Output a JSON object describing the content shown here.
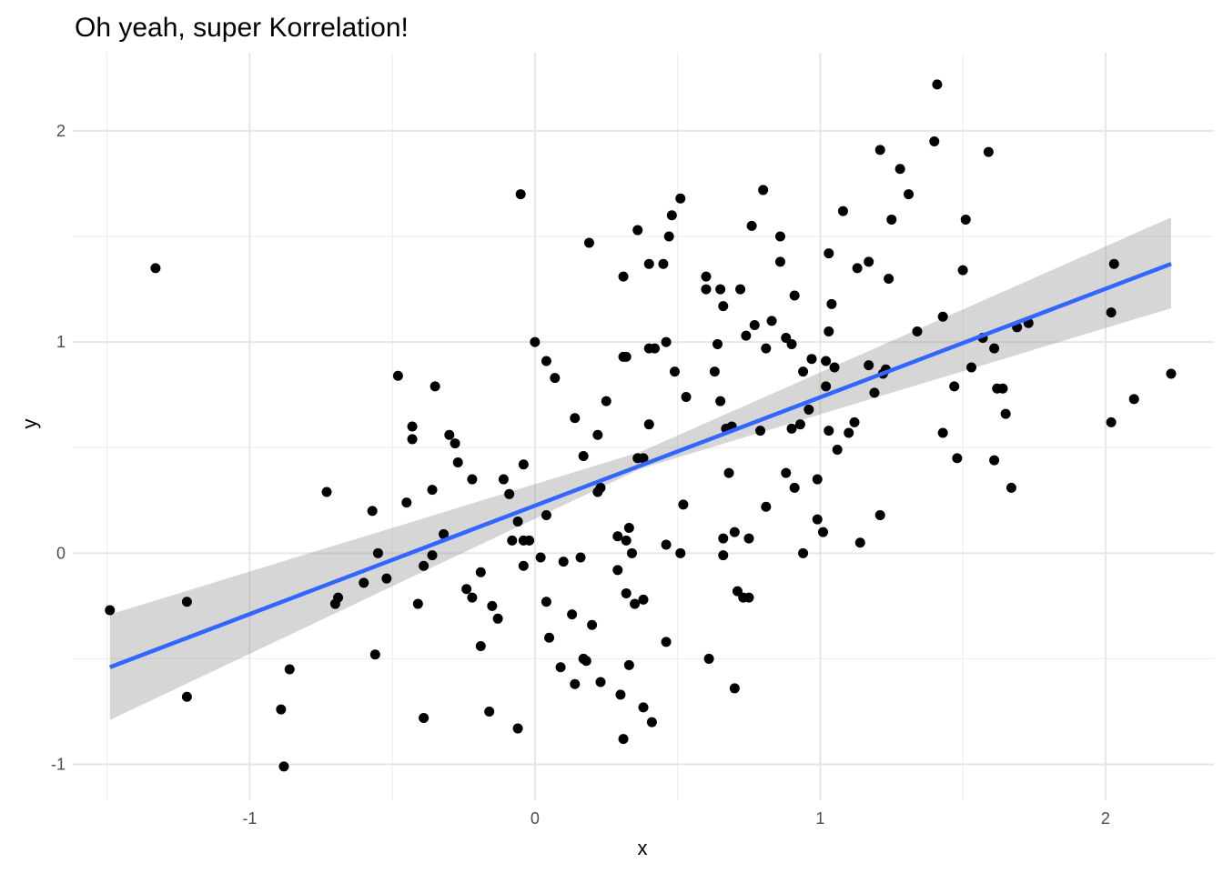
{
  "chart_data": {
    "type": "scatter",
    "title": "Oh yeah, super Korrelation!",
    "xlabel": "x",
    "ylabel": "y",
    "xlim": [
      -1.62,
      2.38
    ],
    "ylim": [
      -1.17,
      2.37
    ],
    "x_ticks": [
      -1,
      0,
      1,
      2
    ],
    "y_ticks": [
      -1,
      0,
      1,
      2
    ],
    "x_tick_labels": [
      "-1",
      "0",
      "1",
      "2"
    ],
    "y_tick_labels": [
      "-1",
      "0",
      "1",
      "2"
    ],
    "grid": true,
    "legend": "none",
    "colors": {
      "points": "#000000",
      "fit_line": "#3366ff",
      "confidence_band": "#999999",
      "grid": "#e6e6e6"
    },
    "fit": {
      "method": "lm",
      "x_range": [
        -1.49,
        2.23
      ],
      "y_start": -0.54,
      "y_end": 1.37,
      "band_lower": [
        [
          -1.49,
          -0.79
        ],
        [
          0.37,
          0.4
        ],
        [
          2.23,
          1.16
        ]
      ],
      "band_upper": [
        [
          -1.49,
          -0.29
        ],
        [
          0.37,
          0.48
        ],
        [
          2.23,
          1.59
        ]
      ]
    },
    "points": [
      [
        -1.49,
        -0.27
      ],
      [
        -1.33,
        1.35
      ],
      [
        -1.22,
        -0.23
      ],
      [
        -1.22,
        -0.68
      ],
      [
        -0.89,
        -0.74
      ],
      [
        -0.88,
        -1.01
      ],
      [
        -0.86,
        -0.55
      ],
      [
        -0.73,
        0.29
      ],
      [
        -0.7,
        -0.24
      ],
      [
        -0.69,
        -0.21
      ],
      [
        -0.6,
        -0.14
      ],
      [
        -0.57,
        0.2
      ],
      [
        -0.56,
        -0.48
      ],
      [
        -0.55,
        0.0
      ],
      [
        -0.52,
        -0.12
      ],
      [
        -0.48,
        0.84
      ],
      [
        -0.45,
        0.24
      ],
      [
        -0.43,
        0.6
      ],
      [
        -0.43,
        0.54
      ],
      [
        -0.41,
        -0.24
      ],
      [
        -0.39,
        -0.78
      ],
      [
        -0.39,
        -0.06
      ],
      [
        -0.36,
        0.3
      ],
      [
        -0.36,
        -0.01
      ],
      [
        -0.35,
        0.79
      ],
      [
        -0.32,
        0.09
      ],
      [
        -0.3,
        0.56
      ],
      [
        -0.28,
        0.52
      ],
      [
        -0.27,
        0.43
      ],
      [
        -0.24,
        -0.17
      ],
      [
        -0.22,
        -0.21
      ],
      [
        -0.22,
        0.35
      ],
      [
        -0.19,
        -0.44
      ],
      [
        -0.19,
        -0.09
      ],
      [
        -0.16,
        -0.75
      ],
      [
        -0.15,
        -0.25
      ],
      [
        -0.13,
        -0.31
      ],
      [
        -0.11,
        0.35
      ],
      [
        -0.09,
        0.28
      ],
      [
        -0.08,
        0.06
      ],
      [
        -0.06,
        -0.83
      ],
      [
        -0.06,
        0.15
      ],
      [
        -0.05,
        1.7
      ],
      [
        -0.04,
        0.06
      ],
      [
        -0.04,
        0.42
      ],
      [
        -0.04,
        -0.06
      ],
      [
        -0.02,
        0.06
      ],
      [
        0.0,
        1.0
      ],
      [
        0.02,
        -0.02
      ],
      [
        0.04,
        0.18
      ],
      [
        0.04,
        0.91
      ],
      [
        0.04,
        -0.23
      ],
      [
        0.05,
        -0.4
      ],
      [
        0.07,
        0.83
      ],
      [
        0.09,
        -0.54
      ],
      [
        0.1,
        -0.04
      ],
      [
        0.13,
        -0.29
      ],
      [
        0.14,
        -0.62
      ],
      [
        0.14,
        0.64
      ],
      [
        0.16,
        -0.02
      ],
      [
        0.17,
        0.46
      ],
      [
        0.17,
        -0.5
      ],
      [
        0.18,
        -0.51
      ],
      [
        0.19,
        1.47
      ],
      [
        0.2,
        -0.34
      ],
      [
        0.22,
        0.56
      ],
      [
        0.22,
        0.29
      ],
      [
        0.23,
        -0.61
      ],
      [
        0.23,
        0.31
      ],
      [
        0.25,
        0.72
      ],
      [
        0.29,
        0.08
      ],
      [
        0.29,
        -0.08
      ],
      [
        0.3,
        -0.67
      ],
      [
        0.31,
        1.31
      ],
      [
        0.31,
        0.93
      ],
      [
        0.31,
        -0.88
      ],
      [
        0.32,
        0.93
      ],
      [
        0.32,
        -0.19
      ],
      [
        0.32,
        0.06
      ],
      [
        0.33,
        -0.53
      ],
      [
        0.33,
        0.12
      ],
      [
        0.34,
        0.0
      ],
      [
        0.35,
        -0.24
      ],
      [
        0.36,
        0.45
      ],
      [
        0.36,
        1.53
      ],
      [
        0.38,
        0.45
      ],
      [
        0.38,
        -0.22
      ],
      [
        0.38,
        -0.73
      ],
      [
        0.4,
        0.61
      ],
      [
        0.4,
        0.97
      ],
      [
        0.4,
        1.37
      ],
      [
        0.41,
        -0.8
      ],
      [
        0.42,
        0.97
      ],
      [
        0.45,
        1.37
      ],
      [
        0.46,
        0.04
      ],
      [
        0.46,
        1.0
      ],
      [
        0.46,
        -0.42
      ],
      [
        0.47,
        1.5
      ],
      [
        0.48,
        1.6
      ],
      [
        0.49,
        0.86
      ],
      [
        0.51,
        1.68
      ],
      [
        0.51,
        0.0
      ],
      [
        0.52,
        0.23
      ],
      [
        0.53,
        0.74
      ],
      [
        0.6,
        1.31
      ],
      [
        0.6,
        1.25
      ],
      [
        0.61,
        -0.5
      ],
      [
        0.63,
        0.86
      ],
      [
        0.64,
        0.99
      ],
      [
        0.65,
        1.25
      ],
      [
        0.65,
        0.72
      ],
      [
        0.66,
        1.17
      ],
      [
        0.66,
        0.07
      ],
      [
        0.66,
        -0.01
      ],
      [
        0.67,
        0.59
      ],
      [
        0.68,
        0.38
      ],
      [
        0.69,
        0.6
      ],
      [
        0.7,
        -0.64
      ],
      [
        0.7,
        0.1
      ],
      [
        0.71,
        -0.18
      ],
      [
        0.72,
        1.25
      ],
      [
        0.73,
        -0.21
      ],
      [
        0.74,
        1.03
      ],
      [
        0.75,
        0.07
      ],
      [
        0.75,
        -0.21
      ],
      [
        0.76,
        1.55
      ],
      [
        0.77,
        1.08
      ],
      [
        0.79,
        0.58
      ],
      [
        0.8,
        1.72
      ],
      [
        0.81,
        0.97
      ],
      [
        0.81,
        0.22
      ],
      [
        0.83,
        1.1
      ],
      [
        0.86,
        1.5
      ],
      [
        0.86,
        1.38
      ],
      [
        0.88,
        1.02
      ],
      [
        0.88,
        0.38
      ],
      [
        0.9,
        0.99
      ],
      [
        0.9,
        0.59
      ],
      [
        0.91,
        0.31
      ],
      [
        0.91,
        1.22
      ],
      [
        0.93,
        0.61
      ],
      [
        0.94,
        0.86
      ],
      [
        0.94,
        0.0
      ],
      [
        0.96,
        0.68
      ],
      [
        0.97,
        0.92
      ],
      [
        0.99,
        0.16
      ],
      [
        0.99,
        0.35
      ],
      [
        1.01,
        0.1
      ],
      [
        1.02,
        0.79
      ],
      [
        1.02,
        0.91
      ],
      [
        1.03,
        1.42
      ],
      [
        1.03,
        1.05
      ],
      [
        1.03,
        0.58
      ],
      [
        1.04,
        1.18
      ],
      [
        1.05,
        0.88
      ],
      [
        1.06,
        0.49
      ],
      [
        1.08,
        1.62
      ],
      [
        1.1,
        0.57
      ],
      [
        1.12,
        0.62
      ],
      [
        1.13,
        1.35
      ],
      [
        1.14,
        0.05
      ],
      [
        1.17,
        1.38
      ],
      [
        1.17,
        0.89
      ],
      [
        1.19,
        0.76
      ],
      [
        1.21,
        1.91
      ],
      [
        1.21,
        0.18
      ],
      [
        1.22,
        0.85
      ],
      [
        1.23,
        0.87
      ],
      [
        1.24,
        1.3
      ],
      [
        1.25,
        1.58
      ],
      [
        1.28,
        1.82
      ],
      [
        1.31,
        1.7
      ],
      [
        1.34,
        1.05
      ],
      [
        1.4,
        1.95
      ],
      [
        1.41,
        2.22
      ],
      [
        1.43,
        1.12
      ],
      [
        1.43,
        0.57
      ],
      [
        1.47,
        0.79
      ],
      [
        1.48,
        0.45
      ],
      [
        1.5,
        1.34
      ],
      [
        1.51,
        1.58
      ],
      [
        1.53,
        0.88
      ],
      [
        1.57,
        1.02
      ],
      [
        1.59,
        1.9
      ],
      [
        1.61,
        0.97
      ],
      [
        1.61,
        0.44
      ],
      [
        1.62,
        0.78
      ],
      [
        1.64,
        0.78
      ],
      [
        1.65,
        0.66
      ],
      [
        1.67,
        0.31
      ],
      [
        1.69,
        1.07
      ],
      [
        1.73,
        1.09
      ],
      [
        2.02,
        0.62
      ],
      [
        2.02,
        1.14
      ],
      [
        2.03,
        1.37
      ],
      [
        2.1,
        0.73
      ],
      [
        2.23,
        0.85
      ]
    ]
  }
}
